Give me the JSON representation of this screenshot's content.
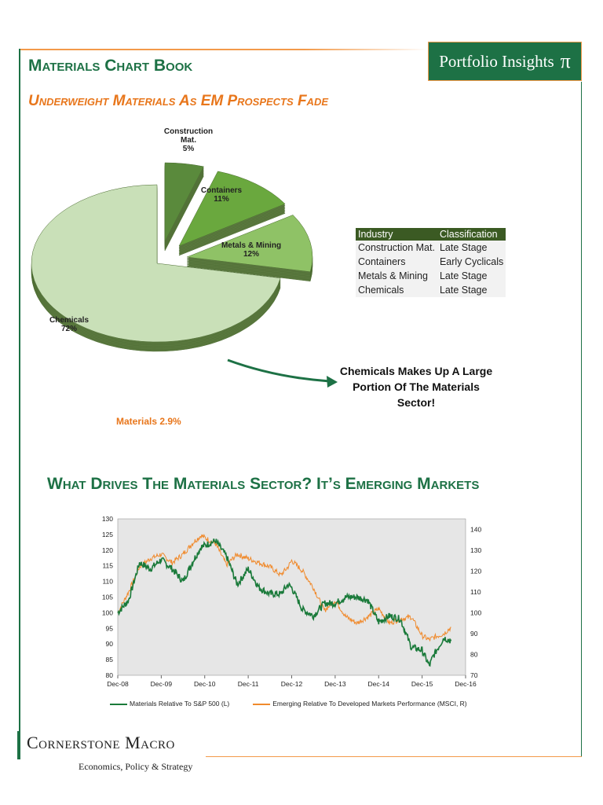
{
  "header": {
    "title": "Materials Chart Book",
    "brand": "Portfolio Insights",
    "brand_symbol": "π"
  },
  "section1": {
    "title": "Underweight Materials As EM Prospects Fade",
    "pie": [
      {
        "label": "Construction Mat.",
        "label_lines": [
          "Construction",
          "Mat."
        ],
        "value": 5,
        "value_label": "5%",
        "color": "#5a8a3c"
      },
      {
        "label": "Containers",
        "label_lines": [
          "Containers"
        ],
        "value": 11,
        "value_label": "11%",
        "color": "#6aa83e"
      },
      {
        "label": "Metals & Mining",
        "label_lines": [
          "Metals & Mining"
        ],
        "value": 12,
        "value_label": "12%",
        "color": "#8fc266"
      },
      {
        "label": "Chemicals",
        "label_lines": [
          "Chemicals"
        ],
        "value": 72,
        "value_label": "72%",
        "color": "#c9e0b8"
      }
    ],
    "weight_label": "Materials  2.9%",
    "table": {
      "headers": [
        "Industry",
        "Classification"
      ],
      "rows": [
        [
          "Construction Mat.",
          "Late Stage"
        ],
        [
          "Containers",
          "Early Cyclicals"
        ],
        [
          "Metals & Mining",
          "Late Stage"
        ],
        [
          "Chemicals",
          "Late Stage"
        ]
      ]
    },
    "callout": "Chemicals Makes Up A Large Portion Of The Materials Sector!"
  },
  "section2": {
    "title": "What Drives The Materials Sector? It’s Emerging Markets"
  },
  "chart_data": {
    "type": "line",
    "x_ticks": [
      "Dec-08",
      "Dec-09",
      "Dec-10",
      "Dec-11",
      "Dec-12",
      "Dec-13",
      "Dec-14",
      "Dec-15",
      "Dec-16"
    ],
    "ylim_left": [
      80,
      130
    ],
    "yticks_left": [
      80,
      85,
      90,
      95,
      100,
      105,
      110,
      115,
      120,
      125,
      130
    ],
    "ylim_right": [
      70,
      145
    ],
    "yticks_right": [
      70,
      80,
      90,
      100,
      110,
      120,
      130,
      140
    ],
    "x_months": [
      0,
      3,
      6,
      9,
      12,
      15,
      18,
      21,
      23,
      27,
      30,
      33,
      36,
      39,
      42,
      45,
      47,
      48,
      51,
      54,
      57,
      60,
      63,
      66,
      69,
      72,
      75,
      78,
      81,
      84,
      86,
      87,
      90,
      92
    ],
    "series": [
      {
        "name": "Materials Relative To S&P 500 (L)",
        "axis": "left",
        "color": "#1a7a3a",
        "values": [
          100,
          104,
          116,
          114,
          117,
          114,
          110,
          117,
          121,
          123,
          118,
          109,
          114,
          108,
          106,
          106,
          109,
          108,
          101,
          99,
          103,
          103,
          105,
          105,
          104,
          97,
          99,
          98,
          89,
          88,
          83,
          86,
          92,
          91
        ]
      },
      {
        "name": "Emerging Relative To Developed Markets Performance (MSCI, R)",
        "axis": "right",
        "color": "#f08a2c",
        "values": [
          100,
          110,
          122,
          126,
          128,
          124,
          128,
          134,
          137,
          133,
          123,
          128,
          126,
          124,
          122,
          118,
          122,
          125,
          120,
          112,
          101,
          106,
          98,
          95,
          98,
          102,
          95,
          97,
          98,
          89,
          87,
          88,
          90,
          93
        ]
      }
    ]
  },
  "footer": {
    "brand": "Cornerstone Macro",
    "tagline": "Economics, Policy & Strategy"
  }
}
